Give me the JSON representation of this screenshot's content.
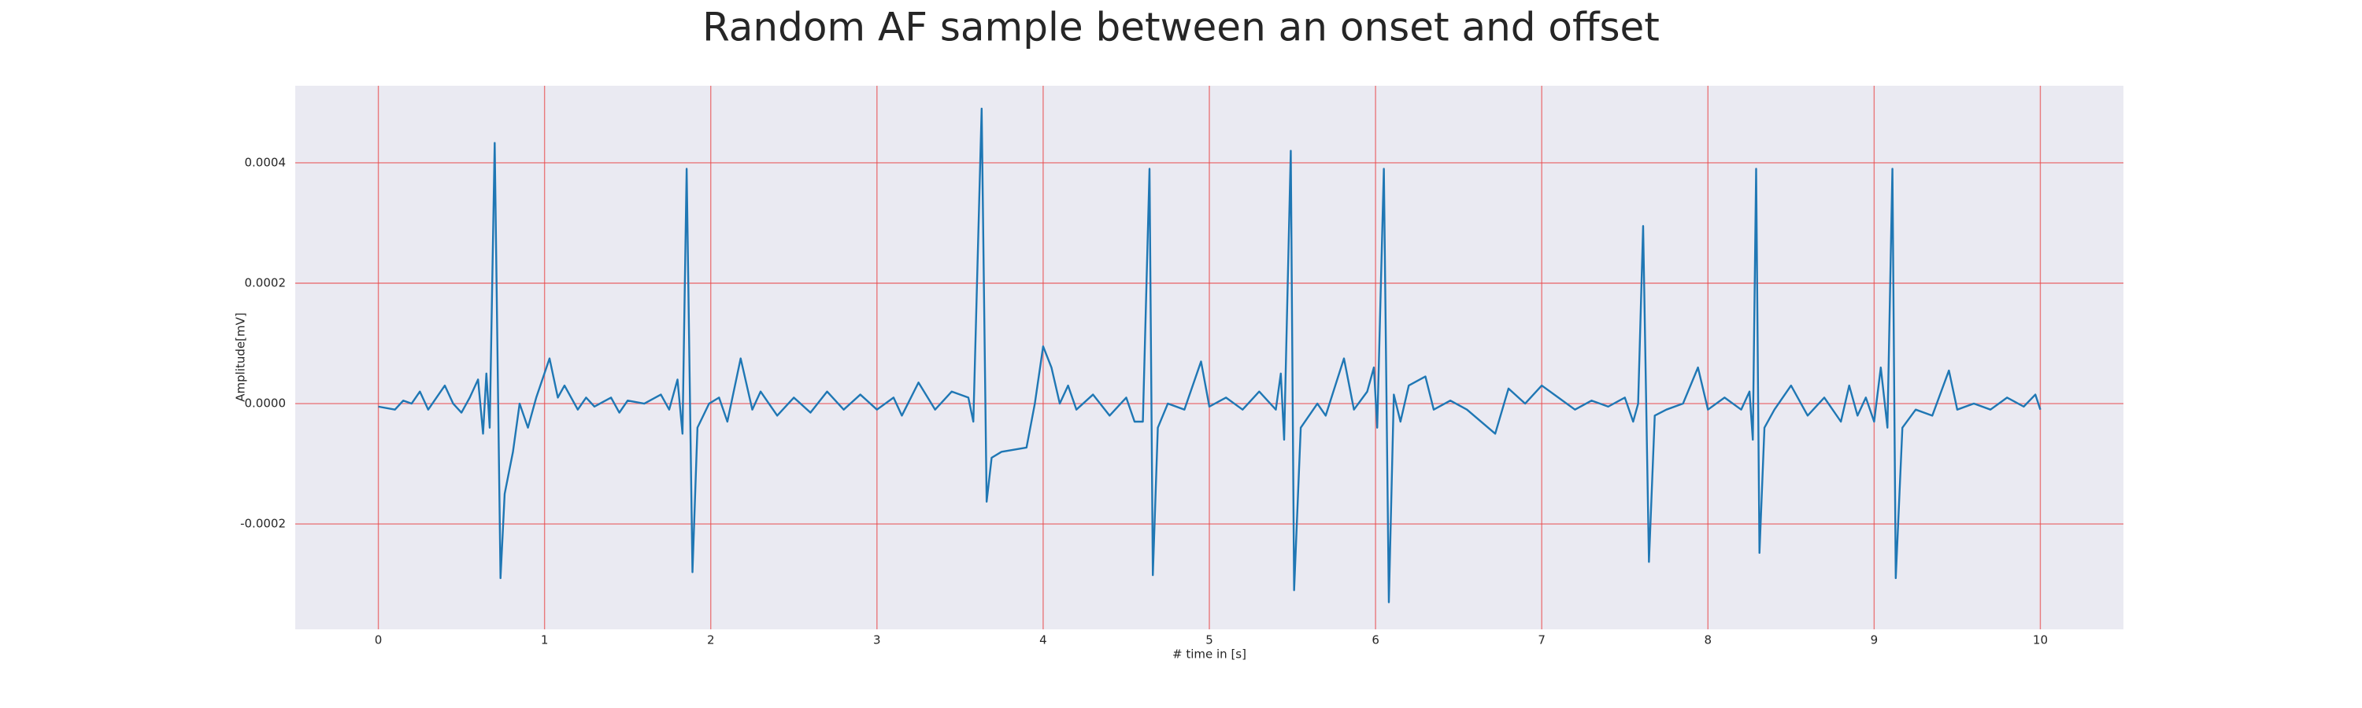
{
  "chart_data": {
    "type": "line",
    "title": "Random AF sample between an onset and offset",
    "xlabel": "# time in [s]",
    "ylabel": "Amplitude[mV]",
    "x": [
      0,
      0.1,
      0.15,
      0.2,
      0.25,
      0.3,
      0.4,
      0.45,
      0.5,
      0.55,
      0.6,
      0.63,
      0.65,
      0.67,
      0.7,
      0.735,
      0.76,
      0.81,
      0.85,
      0.9,
      0.95,
      1.03,
      1.08,
      1.12,
      1.2,
      1.25,
      1.3,
      1.4,
      1.45,
      1.5,
      1.6,
      1.7,
      1.75,
      1.8,
      1.83,
      1.855,
      1.89,
      1.92,
      1.99,
      2.05,
      2.1,
      2.18,
      2.25,
      2.3,
      2.4,
      2.5,
      2.6,
      2.7,
      2.8,
      2.9,
      3.0,
      3.1,
      3.15,
      3.25,
      3.35,
      3.45,
      3.55,
      3.58,
      3.63,
      3.66,
      3.69,
      3.75,
      3.9,
      3.95,
      4.0,
      4.05,
      4.1,
      4.15,
      4.2,
      4.3,
      4.4,
      4.5,
      4.55,
      4.6,
      4.64,
      4.66,
      4.69,
      4.75,
      4.85,
      4.95,
      5.0,
      5.1,
      5.2,
      5.3,
      5.4,
      5.43,
      5.45,
      5.49,
      5.51,
      5.55,
      5.65,
      5.7,
      5.81,
      5.87,
      5.95,
      5.99,
      6.01,
      6.05,
      6.08,
      6.11,
      6.15,
      6.2,
      6.3,
      6.35,
      6.45,
      6.55,
      6.72,
      6.8,
      6.9,
      7.0,
      7.1,
      7.2,
      7.3,
      7.4,
      7.5,
      7.55,
      7.58,
      7.61,
      7.645,
      7.68,
      7.75,
      7.85,
      7.94,
      8.0,
      8.1,
      8.2,
      8.25,
      8.27,
      8.29,
      8.31,
      8.34,
      8.4,
      8.5,
      8.6,
      8.7,
      8.8,
      8.85,
      8.9,
      8.95,
      9.0,
      9.04,
      9.08,
      9.11,
      9.13,
      9.17,
      9.25,
      9.35,
      9.45,
      9.5,
      9.6,
      9.7,
      9.8,
      9.9,
      9.97,
      10.0
    ],
    "series": [
      {
        "color": "#1f77b4",
        "values": [
          -5e-06,
          -1e-05,
          5e-06,
          0,
          2e-05,
          -1e-05,
          3e-05,
          0,
          -1.5e-05,
          1e-05,
          4e-05,
          -5e-05,
          5e-05,
          -4e-05,
          0.000433,
          -0.00029,
          -0.00015,
          -8e-05,
          0,
          -4e-05,
          1e-05,
          7.5e-05,
          1e-05,
          3e-05,
          -1e-05,
          1e-05,
          -5e-06,
          1e-05,
          -1.5e-05,
          5e-06,
          0,
          1.5e-05,
          -1e-05,
          4e-05,
          -5e-05,
          0.00039,
          -0.00028,
          -4e-05,
          0,
          1e-05,
          -3e-05,
          7.5e-05,
          -1e-05,
          2e-05,
          -2e-05,
          1e-05,
          -1.5e-05,
          2e-05,
          -1e-05,
          1.5e-05,
          -1e-05,
          1e-05,
          -2e-05,
          3.5e-05,
          -1e-05,
          2e-05,
          1e-05,
          -3e-05,
          0.00049,
          -0.000163,
          -9e-05,
          -8e-05,
          -7.3e-05,
          0,
          9.5e-05,
          6e-05,
          0,
          3e-05,
          -1e-05,
          1.5e-05,
          -2e-05,
          1e-05,
          -3e-05,
          -3e-05,
          0.00039,
          -0.000285,
          -4e-05,
          0,
          -1e-05,
          7e-05,
          -5e-06,
          1e-05,
          -1e-05,
          2e-05,
          -1e-05,
          5e-05,
          -6e-05,
          0.00042,
          -0.00031,
          -4e-05,
          0,
          -2e-05,
          7.5e-05,
          -1e-05,
          2e-05,
          6e-05,
          -4e-05,
          0.00039,
          -0.00033,
          1.5e-05,
          -3e-05,
          3e-05,
          4.5e-05,
          -1e-05,
          5e-06,
          -1e-05,
          -5e-05,
          2.5e-05,
          0,
          3e-05,
          1e-05,
          -1e-05,
          5e-06,
          -5e-06,
          1e-05,
          -3e-05,
          0,
          0.000295,
          -0.000263,
          -2e-05,
          -1e-05,
          0,
          6e-05,
          -1e-05,
          1e-05,
          -1e-05,
          2e-05,
          -6e-05,
          0.00039,
          -0.000248,
          -4e-05,
          -1e-05,
          3e-05,
          -2e-05,
          1e-05,
          -3e-05,
          3e-05,
          -2e-05,
          1e-05,
          -3e-05,
          6e-05,
          -4e-05,
          0.00039,
          -0.00029,
          -4e-05,
          -1e-05,
          -2e-05,
          5.5e-05,
          -1e-05,
          0,
          -1e-05,
          1e-05,
          -5e-06,
          1.5e-05,
          -1e-05
        ]
      }
    ],
    "xlim": [
      -0.5,
      10.5
    ],
    "xticks": [
      0,
      1,
      2,
      3,
      4,
      5,
      6,
      7,
      8,
      9,
      10
    ],
    "ylim": [
      -0.000375,
      0.000528
    ],
    "yticks": [
      -0.0002,
      {
        "value": 0,
        "label": "0.0000"
      },
      0.0002,
      0.0004
    ],
    "grid": true
  }
}
